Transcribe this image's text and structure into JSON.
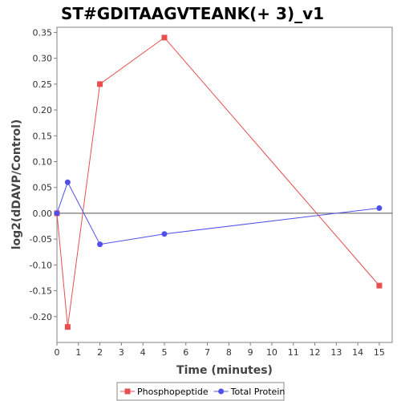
{
  "chart_data": {
    "type": "line",
    "title": "ST#GDITAAGVTEANK(+ 3)_v1",
    "xlabel": "Time (minutes)",
    "ylabel": "log2(dDAVP/Control)",
    "xlim": [
      0,
      15.6
    ],
    "ylim": [
      -0.25,
      0.36
    ],
    "xticks": [
      0,
      1,
      2,
      3,
      4,
      5,
      6,
      7,
      8,
      9,
      10,
      11,
      12,
      13,
      14,
      15
    ],
    "yticks": [
      -0.2,
      -0.15,
      -0.1,
      -0.05,
      0.0,
      0.05,
      0.1,
      0.15,
      0.2,
      0.25,
      0.3,
      0.35
    ],
    "ytick_labels": [
      "-0.20",
      "-0.15",
      "-0.10",
      "-0.05",
      "0.00",
      "0.05",
      "0.10",
      "0.15",
      "0.20",
      "0.25",
      "0.30",
      "0.35"
    ],
    "legend_position": "bottom",
    "series": [
      {
        "name": "Phosphopeptide",
        "color": "#e85050",
        "marker": "square",
        "x": [
          0,
          0.5,
          2,
          5,
          15
        ],
        "y": [
          0.0,
          -0.22,
          0.25,
          0.34,
          -0.14
        ]
      },
      {
        "name": "Total Protein",
        "color": "#5050e8",
        "marker": "circle",
        "x": [
          0,
          0.5,
          2,
          5,
          15
        ],
        "y": [
          0.0,
          0.06,
          -0.06,
          -0.04,
          0.01
        ]
      }
    ]
  }
}
